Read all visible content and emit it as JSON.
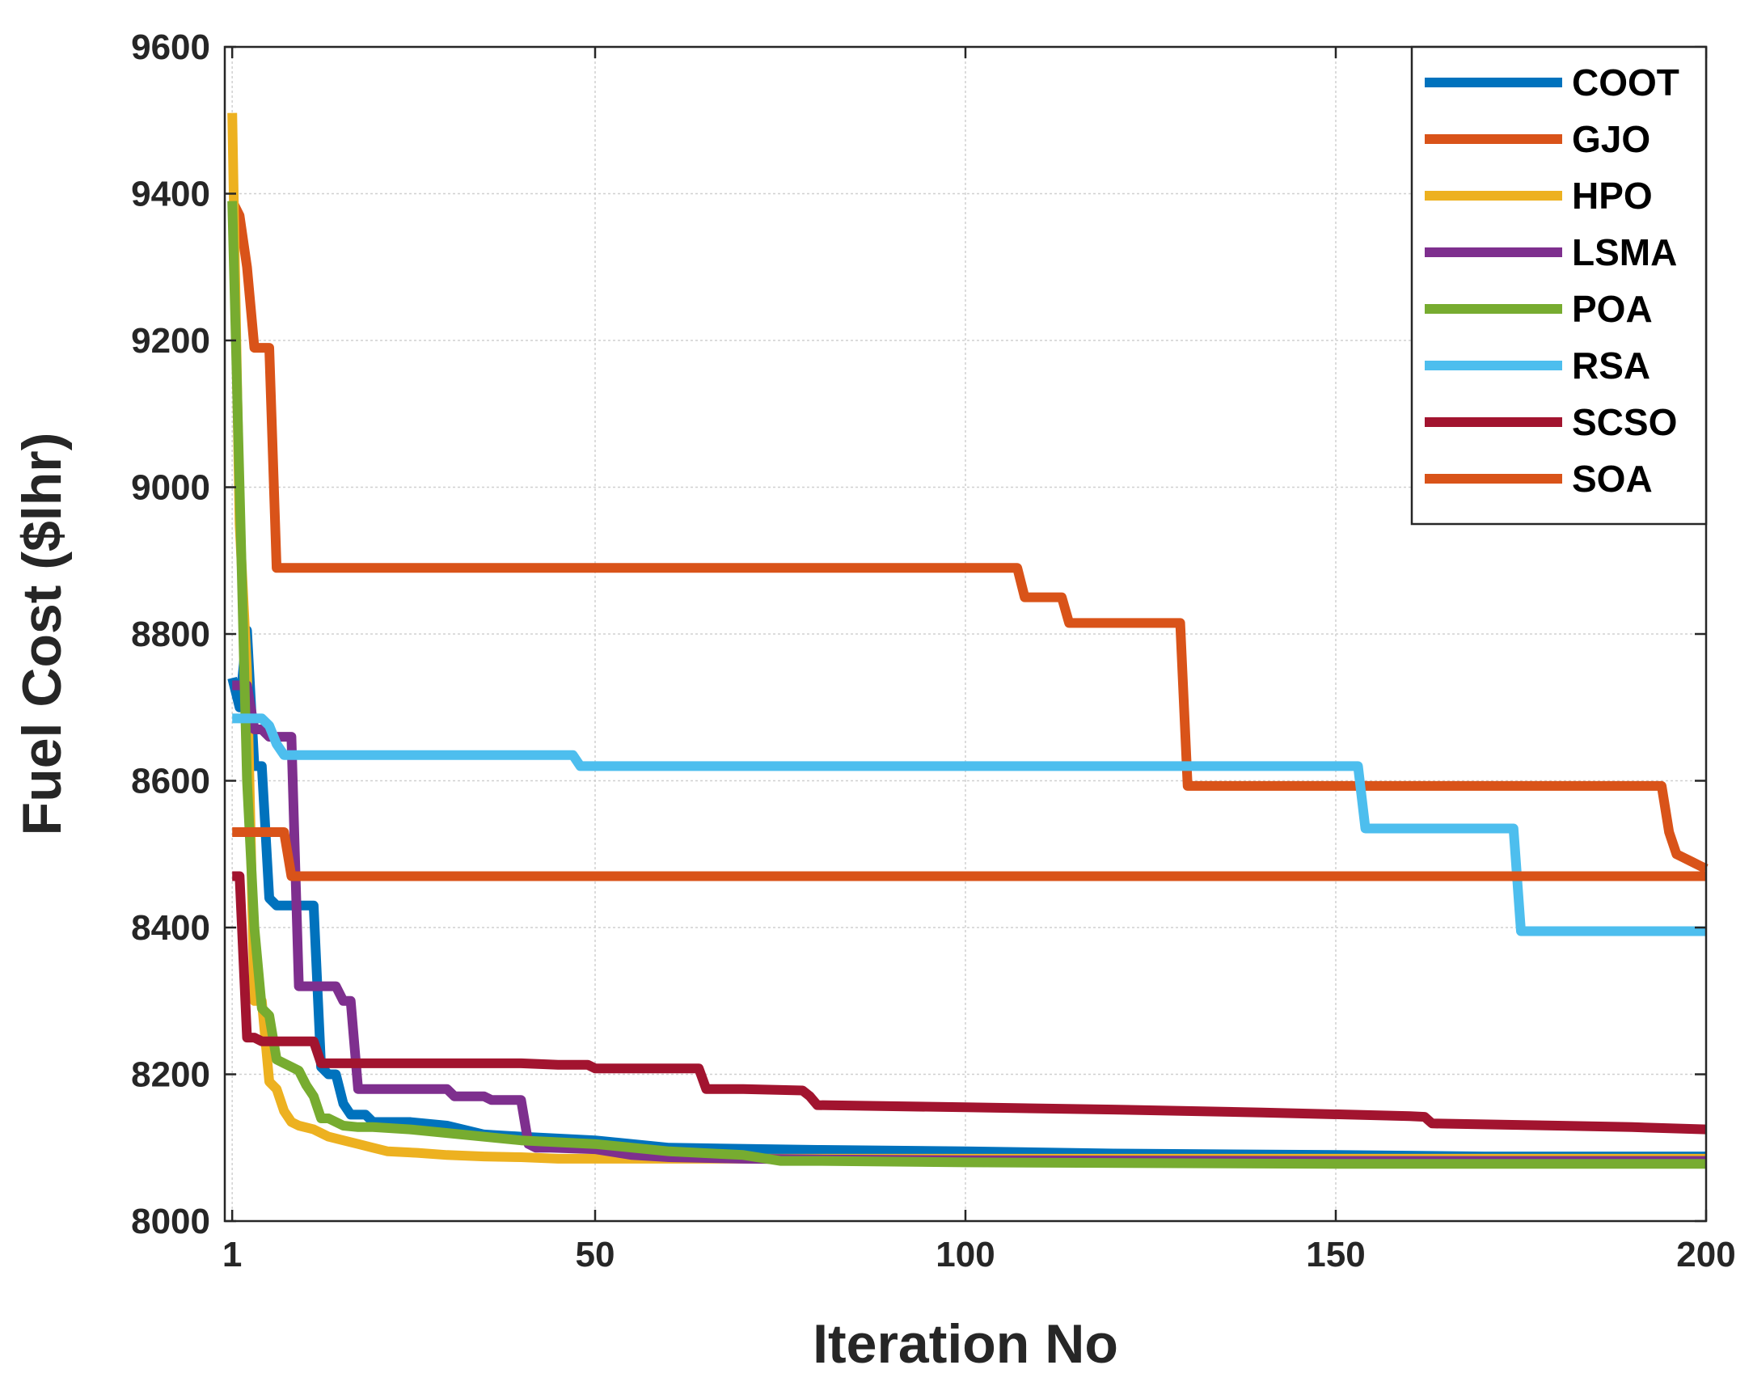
{
  "chart_data": {
    "type": "line",
    "title": "",
    "xlabel": "Iteration No",
    "ylabel": "Fuel Cost ($lhr)",
    "xlim": [
      0,
      200
    ],
    "ylim": [
      8000,
      9600
    ],
    "xticks": [
      1,
      50,
      100,
      150,
      200
    ],
    "xtick_labels": [
      "1",
      "50",
      "100",
      "150",
      "200"
    ],
    "yticks": [
      8000,
      8200,
      8400,
      8600,
      8800,
      9000,
      9200,
      9400,
      9600
    ],
    "ytick_labels": [
      "8000",
      "8200",
      "8400",
      "8600",
      "8800",
      "9000",
      "9200",
      "9400",
      "9600"
    ],
    "grid": true,
    "legend_position": "top-right",
    "series": [
      {
        "name": "COOT",
        "color": "#0072BD",
        "x": [
          1,
          2,
          3,
          4,
          5,
          6,
          7,
          8,
          9,
          10,
          11,
          12,
          13,
          14,
          15,
          16,
          17,
          18,
          19,
          20,
          25,
          30,
          35,
          40,
          50,
          60,
          80,
          100,
          120,
          150,
          170,
          200
        ],
        "y": [
          8740,
          8700,
          8805,
          8620,
          8620,
          8440,
          8430,
          8430,
          8430,
          8430,
          8430,
          8430,
          8210,
          8200,
          8200,
          8160,
          8145,
          8145,
          8145,
          8135,
          8135,
          8130,
          8118,
          8115,
          8110,
          8100,
          8097,
          8095,
          8092,
          8090,
          8088,
          8088
        ]
      },
      {
        "name": "GJO",
        "color": "#D95319",
        "x": [
          1,
          2,
          3,
          4,
          5,
          6,
          7,
          8,
          9,
          10,
          11,
          12,
          100,
          107,
          108,
          113,
          114,
          129,
          130,
          194,
          195,
          196,
          197,
          198,
          199,
          200
        ],
        "y": [
          9390,
          9370,
          9300,
          9190,
          9190,
          9190,
          8890,
          8890,
          8890,
          8890,
          8890,
          8890,
          8890,
          8890,
          8850,
          8850,
          8815,
          8815,
          8593,
          8593,
          8530,
          8500,
          8495,
          8490,
          8485,
          8480
        ]
      },
      {
        "name": "HPO",
        "color": "#EDB120",
        "x": [
          1,
          2,
          3,
          4,
          5,
          6,
          7,
          8,
          9,
          10,
          12,
          14,
          16,
          18,
          20,
          22,
          26,
          30,
          35,
          40,
          45,
          50,
          60,
          80,
          100,
          150,
          200
        ],
        "y": [
          9510,
          8950,
          8750,
          8300,
          8300,
          8190,
          8180,
          8150,
          8135,
          8130,
          8125,
          8115,
          8110,
          8105,
          8100,
          8095,
          8093,
          8090,
          8088,
          8087,
          8085,
          8085,
          8085,
          8085,
          8085,
          8085,
          8085
        ]
      },
      {
        "name": "LSMA",
        "color": "#7E2F8E",
        "x": [
          1,
          3,
          4,
          5,
          6,
          7,
          8,
          9,
          10,
          11,
          12,
          13,
          14,
          15,
          16,
          17,
          18,
          19,
          20,
          25,
          30,
          31,
          32,
          35,
          36,
          40,
          41,
          42,
          44,
          50,
          55,
          60,
          70,
          80,
          100,
          150,
          200
        ],
        "y": [
          8730,
          8730,
          8670,
          8670,
          8660,
          8660,
          8660,
          8660,
          8320,
          8320,
          8320,
          8320,
          8320,
          8320,
          8300,
          8300,
          8180,
          8180,
          8180,
          8180,
          8180,
          8170,
          8170,
          8170,
          8165,
          8165,
          8105,
          8100,
          8100,
          8098,
          8090,
          8087,
          8085,
          8084,
          8083,
          8082,
          8082
        ]
      },
      {
        "name": "POA",
        "color": "#77AC30",
        "x": [
          1,
          2,
          3,
          4,
          5,
          6,
          7,
          8,
          9,
          10,
          11,
          12,
          13,
          14,
          15,
          16,
          18,
          20,
          25,
          30,
          40,
          50,
          60,
          70,
          75,
          80,
          100,
          150,
          200
        ],
        "y": [
          9390,
          9000,
          8600,
          8400,
          8290,
          8280,
          8220,
          8215,
          8210,
          8205,
          8185,
          8170,
          8140,
          8140,
          8135,
          8130,
          8128,
          8128,
          8125,
          8120,
          8110,
          8105,
          8095,
          8090,
          8082,
          8082,
          8080,
          8078,
          8078
        ]
      },
      {
        "name": "RSA",
        "color": "#4DBEEE",
        "x": [
          1,
          5,
          6,
          7,
          8,
          20,
          47,
          48,
          153,
          154,
          174,
          175,
          200
        ],
        "y": [
          8685,
          8685,
          8675,
          8650,
          8635,
          8635,
          8635,
          8620,
          8620,
          8535,
          8535,
          8395,
          8395
        ]
      },
      {
        "name": "SCSO",
        "color": "#A2142F",
        "x": [
          1,
          2,
          3,
          4,
          5,
          6,
          7,
          8,
          9,
          10,
          11,
          12,
          13,
          14,
          15,
          20,
          30,
          40,
          45,
          49,
          50,
          60,
          64,
          65,
          70,
          78,
          79,
          80,
          100,
          120,
          140,
          160,
          162,
          163,
          180,
          190,
          200
        ],
        "y": [
          8470,
          8470,
          8250,
          8250,
          8245,
          8245,
          8245,
          8245,
          8245,
          8245,
          8245,
          8245,
          8215,
          8215,
          8215,
          8215,
          8215,
          8215,
          8213,
          8213,
          8208,
          8208,
          8208,
          8180,
          8180,
          8178,
          8170,
          8158,
          8155,
          8152,
          8148,
          8143,
          8142,
          8133,
          8130,
          8128,
          8125
        ]
      },
      {
        "name": "SOA",
        "color": "#D95319",
        "x": [
          1,
          2,
          3,
          4,
          5,
          6,
          7,
          8,
          9,
          10,
          100,
          200
        ],
        "y": [
          8530,
          8530,
          8530,
          8530,
          8530,
          8530,
          8530,
          8530,
          8470,
          8470,
          8470,
          8470
        ]
      }
    ]
  }
}
